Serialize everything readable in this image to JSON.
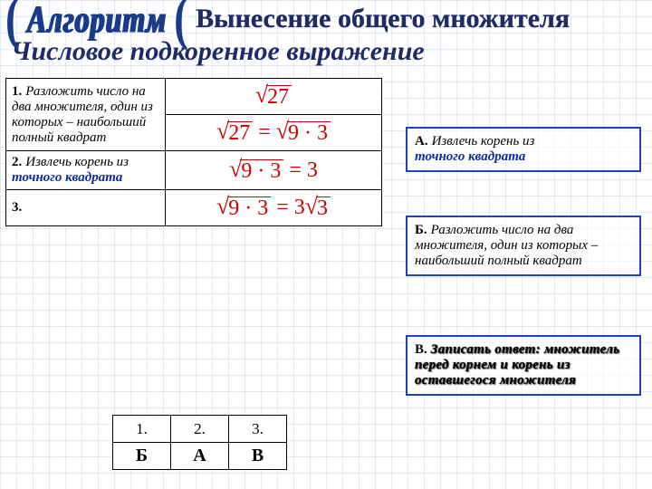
{
  "header": {
    "algo": "Алгоритм",
    "title": "Вынесение общего множителя",
    "subtitle": "Числовое подкоренное выражение"
  },
  "steps": {
    "s1_num": "1.",
    "s1_text": "Разложить число на два множителя, один из которых – наибольший полный квадрат",
    "s2_num": "2.",
    "s2_lead": "Извлечь корень из",
    "s2_blue": "точного квадрата",
    "s3_num": "3."
  },
  "formulas": {
    "f1_rad": "27",
    "f2_lhs": "27",
    "f2_rhs": "9 · 3",
    "f3_lhs": "9 · 3",
    "f3_rhs": "3",
    "f4_lhs": "9 · 3",
    "f4_coef": "3",
    "f4_rad": "3"
  },
  "options": {
    "a_label": "А.",
    "a_lead": "Извлечь корень из",
    "a_blue": "точного квадрата",
    "b_label": "Б.",
    "b_text": "Разложить число на два множителя, один из которых – наибольший полный квадрат",
    "c_label": "В.",
    "c_text": "Записать ответ: множитель перед корнем и корень из оставшегося множителя"
  },
  "answers": {
    "h1": "1.",
    "h2": "2.",
    "h3": "3.",
    "a1": "Б",
    "a2": "А",
    "a3": "В"
  },
  "colors": {
    "accent_blue": "#1a3a8a",
    "formula_red": "#c00",
    "box_border": "#2040c0",
    "link_blue": "#0b2aa0"
  }
}
